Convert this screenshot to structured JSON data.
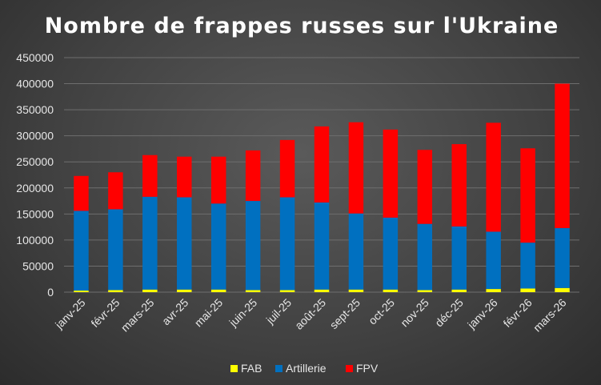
{
  "chart_data": {
    "type": "bar",
    "stacked": true,
    "title": "Nombre de frappes russes sur l'Ukraine",
    "xlabel": "",
    "ylabel": "",
    "ylim": [
      0,
      450000
    ],
    "yticks": [
      0,
      50000,
      100000,
      150000,
      200000,
      250000,
      300000,
      350000,
      400000,
      450000
    ],
    "grid": true,
    "legend_position": "bottom",
    "categories": [
      "janv-25",
      "févr-25",
      "mars-25",
      "avr-25",
      "mai-25",
      "juin-25",
      "juil-25",
      "août-25",
      "sept-25",
      "oct-25",
      "nov-25",
      "déc-25",
      "janv-26",
      "févr-26",
      "mars-26"
    ],
    "series": [
      {
        "name": "FAB",
        "color": "#ffff00",
        "values": [
          3000,
          4000,
          5000,
          5000,
          5000,
          4000,
          4000,
          5000,
          5000,
          5000,
          4000,
          5000,
          6000,
          7000,
          8000
        ]
      },
      {
        "name": "Artillerie",
        "color": "#0070c0",
        "values": [
          153000,
          155000,
          178000,
          177000,
          165000,
          171000,
          178000,
          167000,
          146000,
          138000,
          127000,
          121000,
          110000,
          88000,
          115000
        ]
      },
      {
        "name": "FPV",
        "color": "#ff0000",
        "values": [
          67000,
          71000,
          80000,
          78000,
          90000,
          97000,
          110000,
          146000,
          175000,
          169000,
          142000,
          158000,
          209000,
          181000,
          277000
        ]
      }
    ]
  }
}
